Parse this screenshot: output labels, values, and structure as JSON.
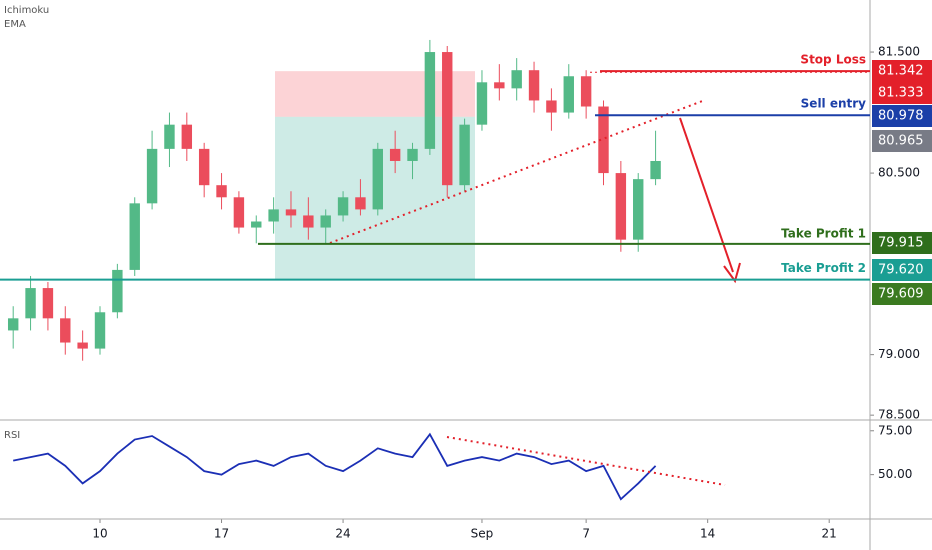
{
  "chart_data": {
    "type": "candlestick",
    "indicators": [
      "Ichimoku",
      "EMA"
    ],
    "x": [
      5,
      6,
      7,
      8,
      9,
      10,
      11,
      12,
      13,
      14,
      15,
      16,
      17,
      18,
      19,
      20,
      21,
      22,
      23,
      24,
      25,
      26,
      27,
      28,
      29,
      30,
      31,
      32,
      33,
      34,
      35,
      36,
      37,
      38,
      39,
      40,
      41,
      42
    ],
    "open": [
      79.2,
      79.3,
      79.55,
      79.3,
      79.1,
      79.05,
      79.35,
      79.7,
      80.25,
      80.7,
      80.9,
      80.7,
      80.4,
      80.3,
      80.05,
      80.1,
      80.2,
      80.15,
      80.05,
      80.15,
      80.3,
      80.2,
      80.7,
      80.6,
      80.7,
      81.5,
      80.4,
      80.9,
      81.25,
      81.2,
      81.35,
      81.1,
      81.0,
      81.3,
      81.05,
      80.5,
      79.95,
      80.45
    ],
    "high": [
      79.4,
      79.65,
      79.6,
      79.4,
      79.2,
      79.4,
      79.75,
      80.3,
      80.85,
      81.0,
      81.0,
      80.75,
      80.5,
      80.35,
      80.15,
      80.3,
      80.35,
      80.3,
      80.2,
      80.35,
      80.45,
      80.75,
      80.85,
      80.75,
      81.6,
      81.55,
      80.95,
      81.35,
      81.4,
      81.45,
      81.42,
      81.2,
      81.4,
      81.35,
      81.1,
      80.6,
      80.5,
      80.85
    ],
    "low": [
      79.05,
      79.2,
      79.2,
      79.0,
      78.95,
      79.0,
      79.3,
      79.65,
      80.2,
      80.55,
      80.6,
      80.3,
      80.2,
      80.0,
      79.92,
      80.0,
      80.05,
      79.95,
      79.92,
      80.1,
      80.15,
      80.15,
      80.5,
      80.45,
      80.65,
      80.3,
      80.35,
      80.85,
      81.1,
      81.1,
      81.0,
      80.85,
      80.95,
      80.95,
      80.4,
      79.85,
      79.85,
      80.4
    ],
    "close": [
      79.3,
      79.55,
      79.3,
      79.1,
      79.05,
      79.35,
      79.7,
      80.25,
      80.7,
      80.9,
      80.7,
      80.4,
      80.3,
      80.05,
      80.1,
      80.2,
      80.15,
      80.05,
      80.15,
      80.3,
      80.2,
      80.7,
      80.6,
      80.7,
      81.5,
      80.4,
      80.9,
      81.25,
      81.2,
      81.35,
      81.1,
      81.0,
      81.3,
      81.05,
      80.5,
      79.95,
      80.45,
      80.6
    ],
    "up_color": "#53b987",
    "down_color": "#eb4d5c",
    "xlim": [
      4.24,
      54.35
    ],
    "xticks": [
      10,
      17,
      24,
      {
        "value": 32,
        "label": "Sep"
      },
      {
        "value": 38,
        "label": "7"
      },
      {
        "value": 45,
        "label": "14"
      },
      {
        "value": 52,
        "label": "21"
      }
    ],
    "ylim": [
      78.46,
      81.93
    ],
    "yticks": [
      {
        "value": 81.5,
        "label": "81.500"
      },
      {
        "value": 80.5,
        "label": "80.500"
      },
      {
        "value": 79.0,
        "label": "79.000"
      },
      {
        "value": 78.5,
        "label": "78.500"
      }
    ],
    "levels": [
      {
        "name": "Stop Loss",
        "price": {
          "value": 81.342,
          "label": "81.342"
        },
        "color": "#e3202a"
      },
      {
        "price": {
          "value": 81.333,
          "label": "81.333"
        },
        "color": "#e3202a"
      },
      {
        "name": "Sell entry",
        "price": {
          "value": 80.978,
          "label": "80.978"
        },
        "color": "#1b3fa8"
      },
      {
        "price": {
          "value": 80.965,
          "label": "80.965"
        },
        "color": "#787b86"
      },
      {
        "name": "Take Profit 1",
        "price": {
          "value": 79.915,
          "label": "79.915"
        },
        "color": "#2f6e1c"
      },
      {
        "name": "Take Profit 2",
        "price": {
          "value": 79.62,
          "label": "79.620"
        },
        "color": "#1a9e93"
      },
      {
        "price": {
          "value": 79.609,
          "label": "79.609"
        },
        "color": "#3b7a20"
      }
    ],
    "rsi": {
      "name": "RSI",
      "color": "#1b2fb5",
      "values": [
        58,
        60,
        62,
        55,
        45,
        52,
        62,
        70,
        72,
        66,
        60,
        52,
        50,
        56,
        58,
        55,
        60,
        62,
        55,
        52,
        58,
        65,
        62,
        60,
        73,
        55,
        58,
        60,
        58,
        62,
        60,
        56,
        58,
        52,
        55,
        36,
        45,
        55
      ],
      "ylim": [
        27,
        80
      ],
      "yticks": [
        {
          "value": 75,
          "label": "75.00"
        },
        {
          "value": 50,
          "label": "50.00"
        }
      ]
    }
  }
}
